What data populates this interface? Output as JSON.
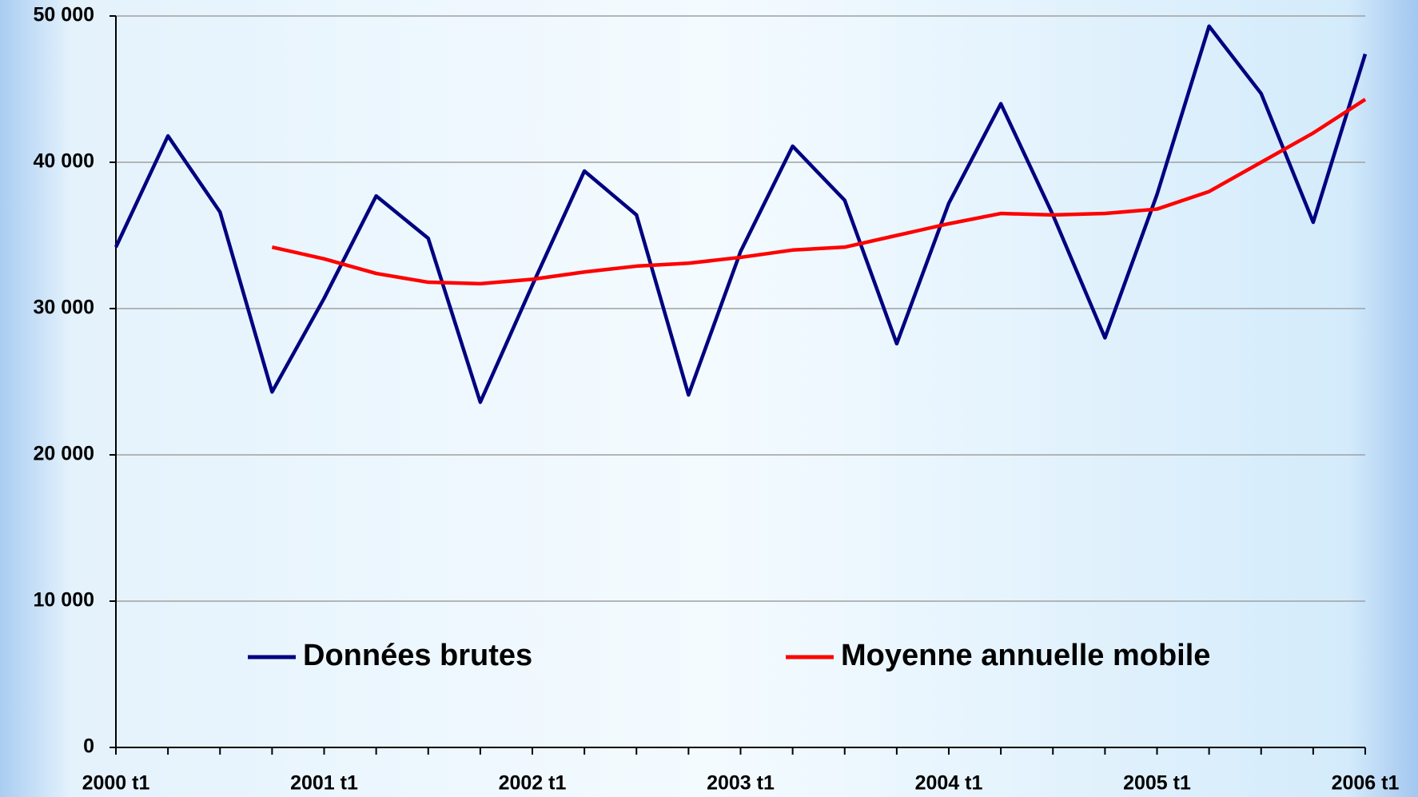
{
  "chart_data": {
    "type": "line",
    "categories": [
      "2000 t1",
      null,
      null,
      null,
      "2001 t1",
      null,
      null,
      null,
      "2002 t1",
      null,
      null,
      null,
      "2003 t1",
      null,
      null,
      null,
      "2004 t1",
      null,
      null,
      null,
      "2005 t1",
      null,
      null,
      null,
      "2006 t1"
    ],
    "series": [
      {
        "name": "Données brutes",
        "color": "#000080",
        "values": [
          34200,
          41800,
          36600,
          24300,
          30700,
          37700,
          34800,
          23600,
          31600,
          39400,
          36400,
          24100,
          33900,
          41100,
          37400,
          27600,
          37200,
          44000,
          36400,
          28000,
          37800,
          49300,
          44700,
          35900,
          47400
        ]
      },
      {
        "name": "Moyenne annuelle mobile",
        "color": "#ff0000",
        "values": [
          null,
          null,
          null,
          34200,
          33400,
          32400,
          31800,
          31700,
          32000,
          32500,
          32900,
          33100,
          33500,
          34000,
          34200,
          35000,
          35800,
          36500,
          36400,
          36500,
          36800,
          38000,
          40000,
          42000,
          44300
        ]
      }
    ],
    "ylim": [
      0,
      50000
    ],
    "yticks": [
      0,
      {
        "value": 10000,
        "label": "10 000"
      },
      {
        "value": 20000,
        "label": "20 000"
      },
      {
        "value": 30000,
        "label": "30 000"
      },
      {
        "value": 40000,
        "label": "40 000"
      },
      {
        "value": 50000,
        "label": "50 000"
      }
    ],
    "grid": true
  }
}
